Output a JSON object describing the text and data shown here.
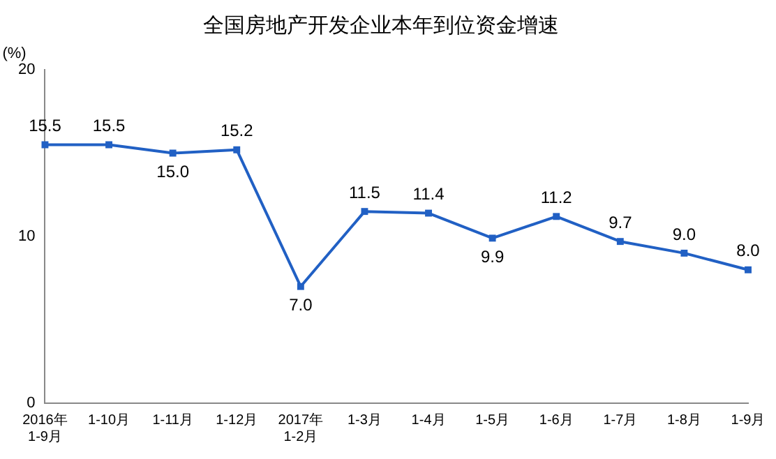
{
  "chart_data": {
    "type": "line",
    "title": "全国房地产开发企业本年到位资金增速",
    "ylabel": "(%)",
    "categories": [
      "2016年\n1-9月",
      "1-10月",
      "1-11月",
      "1-12月",
      "2017年\n1-2月",
      "1-3月",
      "1-4月",
      "1-5月",
      "1-6月",
      "1-7月",
      "1-8月",
      "1-9月"
    ],
    "series": [
      {
        "color": "#2160c4",
        "values": [
          15.5,
          15.5,
          15.0,
          15.2,
          7.0,
          11.5,
          11.4,
          9.9,
          11.2,
          9.7,
          9.0,
          8.0
        ],
        "value_labels": [
          "15.5",
          "15.5",
          "15.0",
          "15.2",
          "7.0",
          "11.5",
          "11.4",
          "9.9",
          "11.2",
          "9.7",
          "9.0",
          "8.0"
        ]
      }
    ],
    "ylim": [
      0,
      20
    ],
    "yticks": [
      0,
      10,
      20
    ],
    "grid": false,
    "legend": false,
    "marker": "square",
    "line_style": "solid"
  }
}
